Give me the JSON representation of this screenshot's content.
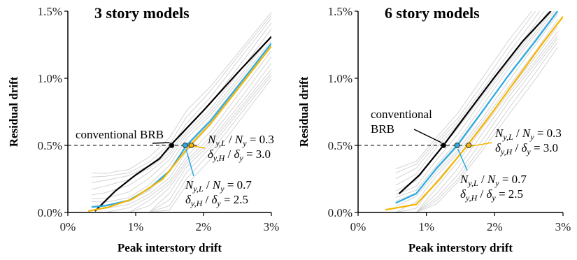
{
  "chart_data": [
    {
      "type": "line",
      "title": "3 story models",
      "xlabel": "Peak interstory drift",
      "ylabel": "Residual drift",
      "xlim": [
        0,
        3
      ],
      "ylim": [
        0,
        1.5
      ],
      "xticks": [
        "0%",
        "1%",
        "2%",
        "3%"
      ],
      "yticks": [
        "0.0%",
        "0.5%",
        "1.0%",
        "1.5%"
      ],
      "reference_y": 0.5,
      "annotations": {
        "conventional": "conventional BRB",
        "case1_line1": "= 0.3",
        "case1_line2": "= 3.0",
        "case2_line1": "= 0.7",
        "case2_line2": "= 2.5"
      },
      "series": [
        {
          "color": "#000000",
          "x": [
            0.4,
            0.7,
            1.0,
            1.35,
            1.55,
            2.0,
            2.5,
            3.0
          ],
          "y": [
            0.01,
            0.16,
            0.28,
            0.4,
            0.52,
            0.76,
            1.04,
            1.31
          ]
        },
        {
          "color": "#29abe2",
          "x": [
            0.35,
            0.55,
            0.9,
            1.2,
            1.5,
            1.75,
            2.1,
            2.6,
            3.0
          ],
          "y": [
            0.04,
            0.05,
            0.09,
            0.18,
            0.31,
            0.5,
            0.68,
            1.0,
            1.26
          ]
        },
        {
          "color": "#f5b500",
          "x": [
            0.3,
            0.6,
            0.95,
            1.4,
            1.8,
            2.1,
            2.6,
            3.0
          ],
          "y": [
            0.01,
            0.04,
            0.1,
            0.25,
            0.5,
            0.66,
            0.98,
            1.24
          ]
        }
      ],
      "markers": [
        {
          "color": "#000000",
          "x": 1.53,
          "y": 0.5
        },
        {
          "color": "#29abe2",
          "x": 1.73,
          "y": 0.5
        },
        {
          "color": "#f5b500",
          "x": 1.82,
          "y": 0.5
        }
      ]
    },
    {
      "type": "line",
      "title": "6 story models",
      "xlabel": "Peak interstory drift",
      "ylabel": "Residual drift",
      "xlim": [
        0,
        3
      ],
      "ylim": [
        0,
        1.5
      ],
      "xticks": [
        "0%",
        "1%",
        "2%",
        "3%"
      ],
      "yticks": [
        "0.0%",
        "0.5%",
        "1.0%",
        "1.5%"
      ],
      "reference_y": 0.5,
      "annotations": {
        "conventional_line1": "conventional",
        "conventional_line2": "BRB",
        "case1_line1": "= 0.3",
        "case1_line2": "= 3.0",
        "case2_line1": "= 0.7",
        "case2_line2": "= 2.5"
      },
      "series": [
        {
          "color": "#000000",
          "x": [
            0.6,
            0.9,
            1.25,
            1.6,
            2.0,
            2.4,
            2.82
          ],
          "y": [
            0.14,
            0.28,
            0.5,
            0.74,
            1.01,
            1.27,
            1.5
          ]
        },
        {
          "color": "#29abe2",
          "x": [
            0.55,
            0.85,
            1.15,
            1.45,
            1.8,
            2.2,
            2.6,
            2.92
          ],
          "y": [
            0.07,
            0.14,
            0.33,
            0.5,
            0.74,
            1.02,
            1.28,
            1.5
          ]
        },
        {
          "color": "#f5b500",
          "x": [
            0.4,
            0.85,
            1.2,
            1.6,
            1.9,
            2.3,
            2.7,
            3.0
          ],
          "y": [
            0.02,
            0.06,
            0.25,
            0.5,
            0.7,
            0.98,
            1.26,
            1.46
          ]
        }
      ],
      "markers": [
        {
          "color": "#000000",
          "x": 1.25,
          "y": 0.5
        },
        {
          "color": "#29abe2",
          "x": 1.45,
          "y": 0.5
        },
        {
          "color": "#f5b500",
          "x": 1.62,
          "y": 0.5
        }
      ]
    }
  ]
}
